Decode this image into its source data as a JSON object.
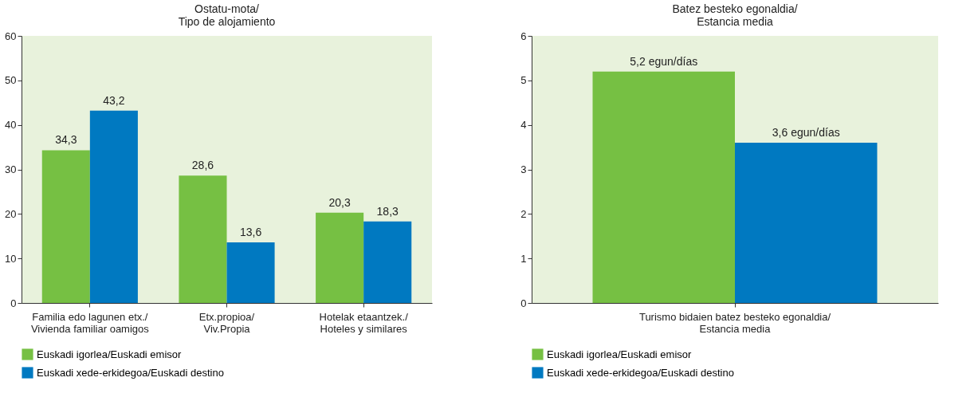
{
  "chart_data": [
    {
      "type": "bar",
      "title": "Ostatu-mota/\nTipo de alojamiento",
      "categories": [
        "Familia edo lagunen etx./\nVivienda familiar oamigos",
        "Etx.propioa/\nViv.Propia",
        "Hotelak etaantzek./\nHoteles y similares"
      ],
      "series": [
        {
          "name": "Euskadi igorlea/Euskadi emisor",
          "color": "#76c043",
          "values": [
            34.3,
            28.6,
            20.3
          ],
          "value_labels": [
            "34,3",
            "28,6",
            "20,3"
          ]
        },
        {
          "name": "Euskadi xede-erkidegoa/Euskadi destino",
          "color": "#0079c1",
          "values": [
            43.2,
            13.6,
            18.3
          ],
          "value_labels": [
            "43,2",
            "13,6",
            "18,3"
          ]
        }
      ],
      "ylim": [
        0,
        60
      ],
      "yticks": [
        0,
        10,
        20,
        30,
        40,
        50,
        60
      ],
      "grid": false,
      "legend": "bottom"
    },
    {
      "type": "bar",
      "title": "Batez besteko egonaldia/\nEstancia media",
      "categories": [
        "Turismo bidaien batez besteko egonaldia/\nEstancia media"
      ],
      "series": [
        {
          "name": "Euskadi igorlea/Euskadi emisor",
          "color": "#76c043",
          "values": [
            5.2
          ],
          "value_labels": [
            "5,2 egun/días"
          ]
        },
        {
          "name": "Euskadi xede-erkidegoa/Euskadi destino",
          "color": "#0079c1",
          "values": [
            3.6
          ],
          "value_labels": [
            "3,6 egun/días"
          ]
        }
      ],
      "ylim": [
        0,
        6
      ],
      "yticks": [
        0,
        1,
        2,
        3,
        4,
        5,
        6
      ],
      "grid": false,
      "legend": "bottom"
    }
  ]
}
